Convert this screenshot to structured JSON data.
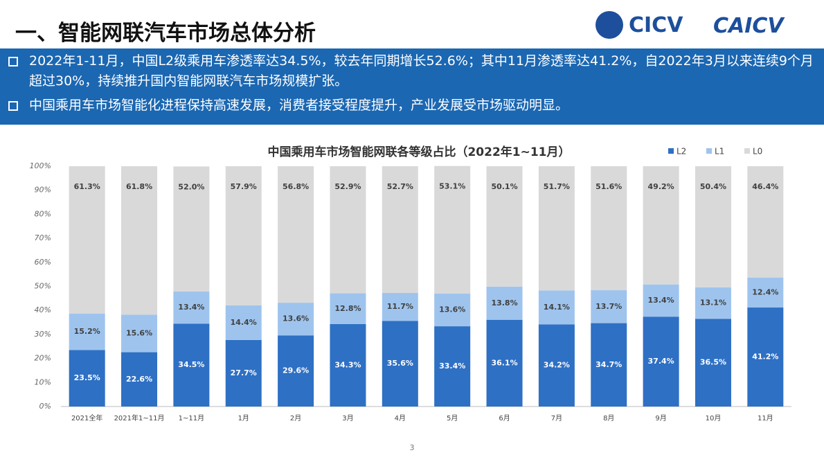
{
  "header": {
    "title": "一、智能网联汽车市场总体分析",
    "logo_text": "CICV",
    "logo2_text": "CAICV"
  },
  "bullets": [
    "2022年1-11月，中国L2级乘用车渗透率达34.5%，较去年同期增长52.6%；其中11月渗透率达41.2%，自2022年3月以来连续9个月超过30%，持续推升国内智能网联汽车市场规模扩张。",
    "中国乘用车市场智能化进程保持高速发展，消费者接受程度提升，产业发展受市场驱动明显。"
  ],
  "page_number": "3",
  "chart_data": {
    "type": "stacked_bar",
    "title": "中国乘用车市场智能网联各等级占比（2022年1~11月）",
    "categories": [
      "2021全年",
      "2021年1~11月",
      "1~11月",
      "1月",
      "2月",
      "3月",
      "4月",
      "5月",
      "6月",
      "7月",
      "8月",
      "9月",
      "10月",
      "11月"
    ],
    "series": [
      {
        "name": "L2",
        "color": "#2e70c4",
        "label_color": "#ffffff",
        "values": [
          23.5,
          22.6,
          34.5,
          27.7,
          29.6,
          34.3,
          35.6,
          33.4,
          36.1,
          34.2,
          34.7,
          37.4,
          36.5,
          41.2
        ],
        "value_labels": [
          "23.5%",
          "22.6%",
          "34.5%",
          "27.7%",
          "29.6%",
          "34.3%",
          "35.6%",
          "33.4%",
          "36.1%",
          "34.2%",
          "34.7%",
          "37.4%",
          "36.5%",
          "41.2%"
        ]
      },
      {
        "name": "L1",
        "color": "#9ec4ee",
        "label_color": "#404040",
        "values": [
          15.2,
          15.6,
          13.4,
          14.4,
          13.6,
          12.8,
          11.7,
          13.6,
          13.8,
          14.1,
          13.7,
          13.4,
          13.1,
          12.4
        ],
        "value_labels": [
          "15.2%",
          "15.6%",
          "13.4%",
          "14.4%",
          "13.6%",
          "12.8%",
          "11.7%",
          "13.6%",
          "13.8%",
          "14.1%",
          "13.7%",
          "13.4%",
          "13.1%",
          "12.4%"
        ]
      },
      {
        "name": "L0",
        "color": "#d9d9d9",
        "label_color": "#404040",
        "values": [
          61.3,
          61.8,
          52.0,
          57.9,
          56.8,
          52.9,
          52.7,
          53.1,
          50.1,
          51.7,
          51.6,
          49.2,
          50.4,
          46.4
        ],
        "value_labels": [
          "61.3%",
          "61.8%",
          "52.0%",
          "57.9%",
          "56.8%",
          "52.9%",
          "52.7%",
          "53.1%",
          "50.1%",
          "51.7%",
          "51.6%",
          "49.2%",
          "50.4%",
          "46.4%"
        ]
      }
    ],
    "ylim": [
      0,
      100
    ],
    "yticks": [
      {
        "value": 0,
        "label": "0%"
      },
      {
        "value": 10,
        "label": "10%"
      },
      {
        "value": 20,
        "label": "20%"
      },
      {
        "value": 30,
        "label": "30%"
      },
      {
        "value": 40,
        "label": "40%"
      },
      {
        "value": 50,
        "label": "50%"
      },
      {
        "value": 60,
        "label": "60%"
      },
      {
        "value": 70,
        "label": "70%"
      },
      {
        "value": 80,
        "label": "80%"
      },
      {
        "value": 90,
        "label": "90%"
      },
      {
        "value": 100,
        "label": "100%"
      }
    ],
    "legend": "top-right",
    "grid": false
  }
}
